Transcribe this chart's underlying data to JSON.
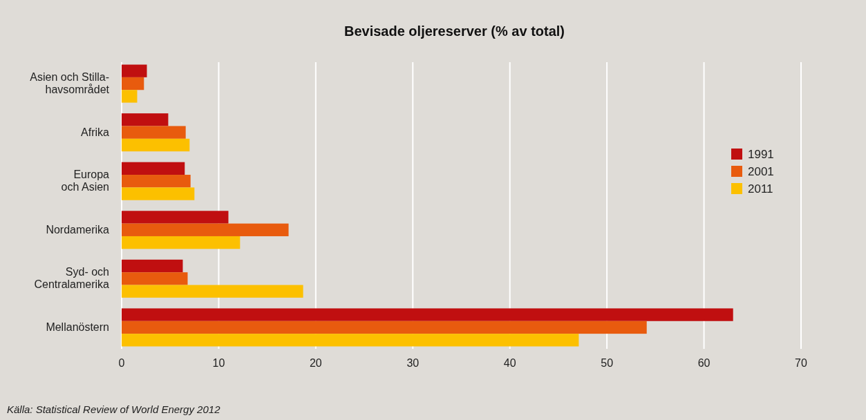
{
  "chart_data": {
    "type": "bar",
    "orientation": "horizontal",
    "title": "Bevisade oljereserver (% av total)",
    "categories": [
      "Asien och Stilla-\nhavsområdet",
      "Afrika",
      "Europa\noch Asien",
      "Nordamerika",
      "Syd- och\nCentralamerika",
      "Mellanöstern"
    ],
    "series": [
      {
        "name": "1991",
        "color": "#c00f10",
        "values": [
          2.6,
          4.8,
          6.5,
          11.0,
          6.3,
          63.0
        ]
      },
      {
        "name": "2001",
        "color": "#e85b0e",
        "values": [
          2.3,
          6.6,
          7.1,
          17.2,
          6.8,
          54.1
        ]
      },
      {
        "name": "2011",
        "color": "#fcc000",
        "values": [
          1.6,
          7.0,
          7.5,
          12.2,
          18.7,
          47.1
        ]
      }
    ],
    "xlim": [
      0,
      70
    ],
    "xticks": [
      0,
      10,
      20,
      30,
      40,
      50,
      60,
      70
    ],
    "grid": "x",
    "legend": "right",
    "annotations": [
      "Källa: Statistical Review of World Energy 2012"
    ]
  }
}
